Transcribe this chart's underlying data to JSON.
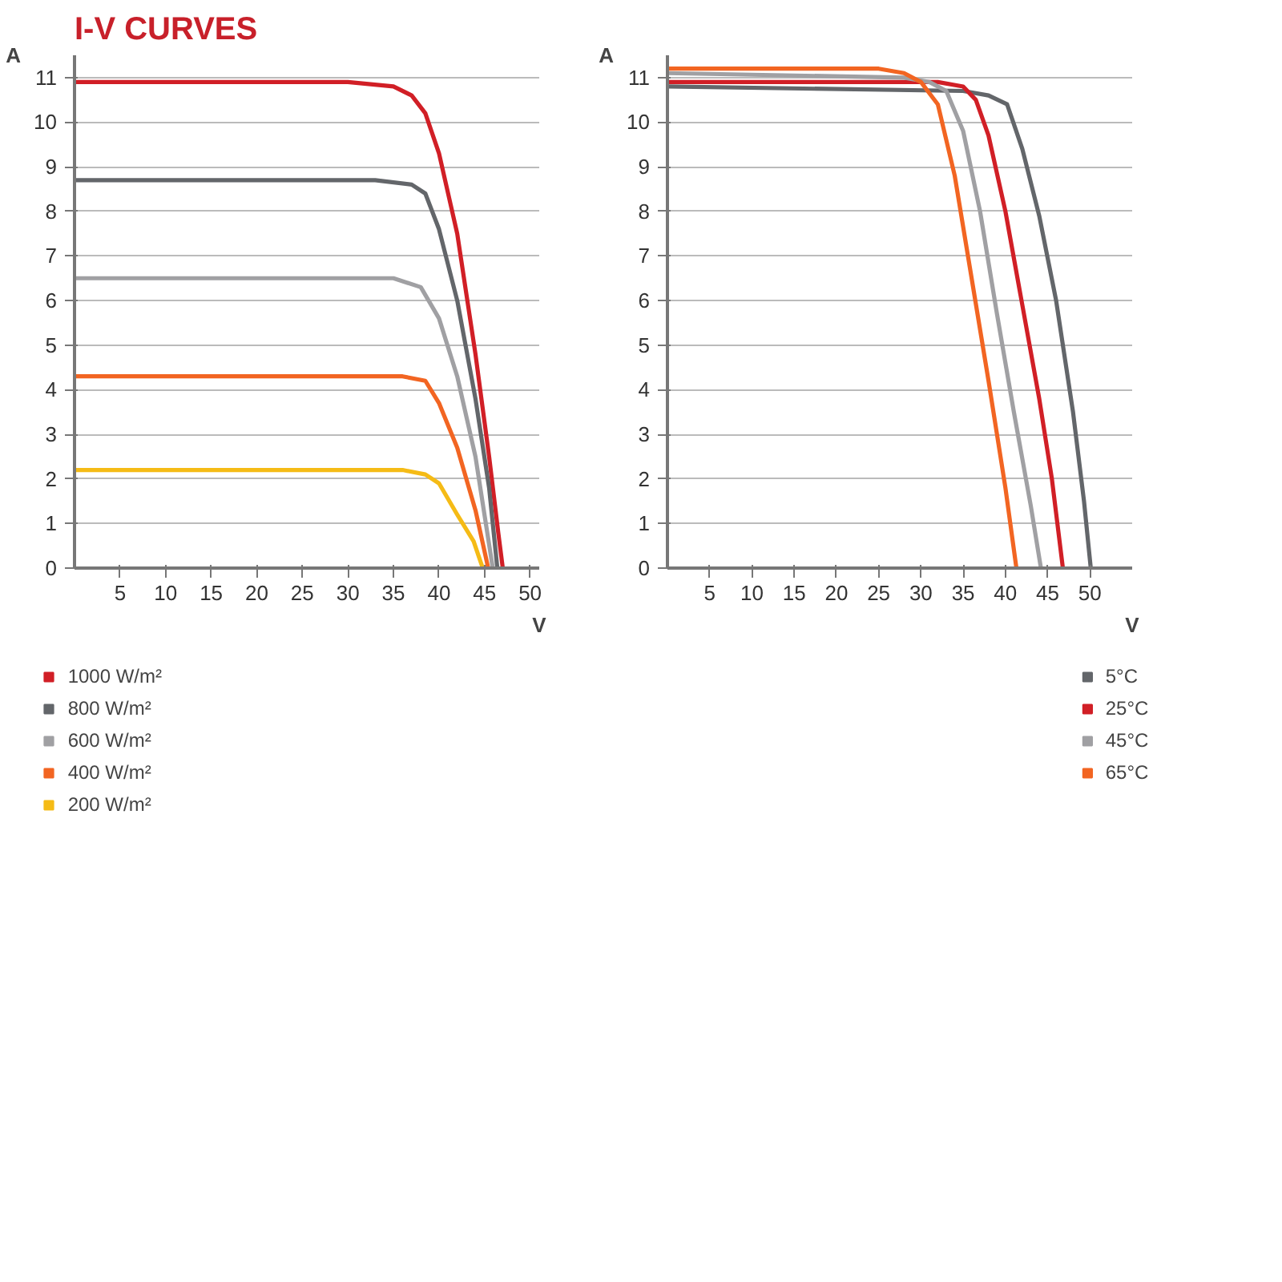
{
  "chart_data": [
    {
      "type": "line",
      "title": "I-V CURVES",
      "xlabel": "V",
      "ylabel": "A",
      "xlim": [
        0,
        51
      ],
      "ylim": [
        0,
        11.5
      ],
      "xticks": [
        5,
        10,
        15,
        20,
        25,
        30,
        35,
        40,
        45,
        50
      ],
      "yticks": [
        0,
        1,
        2,
        3,
        4,
        5,
        6,
        7,
        8,
        9,
        10,
        11
      ],
      "grid": "y",
      "legend": "bottom left",
      "series": [
        {
          "name": "1000 W/m²",
          "color": "#d11f26",
          "x": [
            0,
            30,
            35,
            37,
            38.5,
            40,
            42,
            44,
            45.5,
            46.5,
            47
          ],
          "values": [
            10.9,
            10.9,
            10.8,
            10.6,
            10.2,
            9.3,
            7.5,
            4.8,
            2.5,
            0.8,
            0
          ]
        },
        {
          "name": "800 W/m²",
          "color": "#63666a",
          "x": [
            0,
            33,
            37,
            38.5,
            40,
            42,
            44,
            45.5,
            46.4
          ],
          "values": [
            8.7,
            8.7,
            8.6,
            8.4,
            7.6,
            6.0,
            3.8,
            1.8,
            0
          ]
        },
        {
          "name": "600 W/m²",
          "color": "#a0a0a3",
          "x": [
            0,
            35,
            38,
            40,
            42,
            44,
            45.9
          ],
          "values": [
            6.5,
            6.5,
            6.3,
            5.6,
            4.3,
            2.5,
            0
          ]
        },
        {
          "name": "400 W/m²",
          "color": "#f26522",
          "x": [
            0,
            36,
            38.5,
            40,
            42,
            44,
            45.4
          ],
          "values": [
            4.3,
            4.3,
            4.2,
            3.7,
            2.7,
            1.3,
            0
          ]
        },
        {
          "name": "200 W/m²",
          "color": "#f5bb16",
          "x": [
            0,
            36,
            38.5,
            40,
            42,
            43.8,
            44.8
          ],
          "values": [
            2.2,
            2.2,
            2.1,
            1.9,
            1.2,
            0.6,
            0
          ]
        }
      ]
    },
    {
      "type": "line",
      "xlabel": "V",
      "ylabel": "A",
      "xlim": [
        0,
        55
      ],
      "ylim": [
        0,
        11.5
      ],
      "xticks": [
        5,
        10,
        15,
        20,
        25,
        30,
        35,
        40,
        45,
        50
      ],
      "yticks": [
        0,
        1,
        2,
        3,
        4,
        5,
        6,
        7,
        8,
        9,
        10,
        11
      ],
      "grid": "y",
      "legend": "bottom right",
      "series": [
        {
          "name": "5°C",
          "color": "#63666a",
          "x": [
            0,
            35,
            38,
            40.2,
            42,
            44,
            46,
            48,
            49.3,
            50.1
          ],
          "values": [
            10.8,
            10.7,
            10.6,
            10.4,
            9.4,
            7.9,
            6.0,
            3.5,
            1.5,
            0
          ]
        },
        {
          "name": "25°C",
          "color": "#d11f26",
          "x": [
            0,
            32,
            35,
            36.5,
            38,
            40,
            42,
            44,
            45.5,
            46.8
          ],
          "values": [
            10.9,
            10.9,
            10.8,
            10.5,
            9.7,
            8.0,
            5.9,
            3.8,
            2.0,
            0
          ]
        },
        {
          "name": "45°C",
          "color": "#a0a0a3",
          "x": [
            0,
            28,
            31,
            33,
            35,
            37,
            39,
            41,
            43,
            44.2
          ],
          "values": [
            11.1,
            11.0,
            10.9,
            10.7,
            9.8,
            8.0,
            5.7,
            3.5,
            1.4,
            0
          ]
        },
        {
          "name": "65°C",
          "color": "#f26522",
          "x": [
            0,
            25,
            28,
            30,
            32,
            34,
            36,
            38,
            40,
            41.3
          ],
          "values": [
            11.2,
            11.2,
            11.1,
            10.9,
            10.4,
            8.8,
            6.5,
            4.2,
            1.8,
            0
          ]
        }
      ]
    }
  ]
}
